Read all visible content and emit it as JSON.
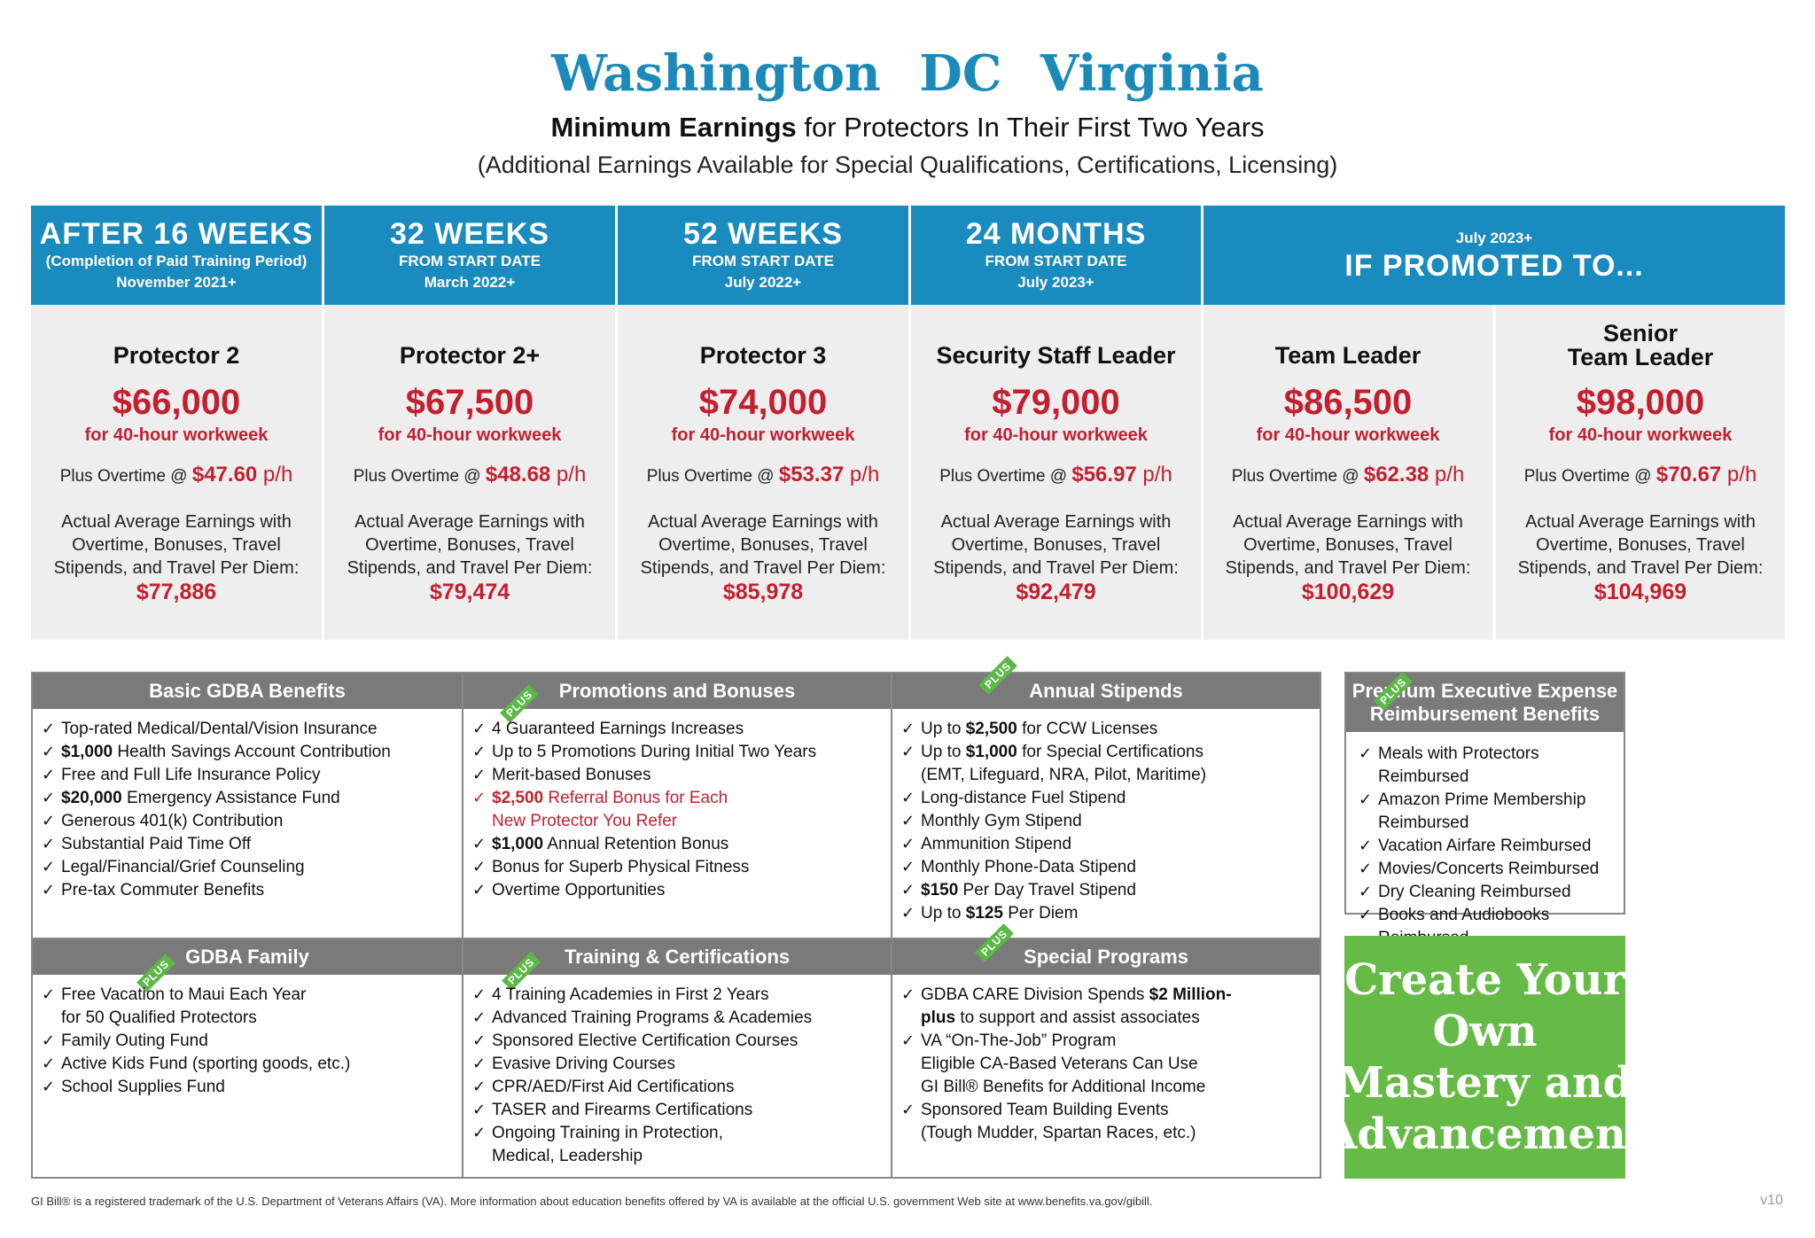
{
  "header": {
    "title": "Washington DC   Virginia",
    "subtitle_bold": "Minimum Earnings",
    "subtitle_rest": " for Protectors In Their First Two Years",
    "subtitle2": "(Additional Earnings Available for Special Qualifications, Certifications, Licensing)"
  },
  "pay_headers": [
    {
      "big": "AFTER 16 WEEKS",
      "line1": "(Completion of Paid Training Period)",
      "line2": "November 2021+"
    },
    {
      "big": "32 WEEKS",
      "line1": "FROM START DATE",
      "line2": "March 2022+"
    },
    {
      "big": "52 WEEKS",
      "line1": "FROM START DATE",
      "line2": "July 2022+"
    },
    {
      "big": "24 MONTHS",
      "line1": "FROM START DATE",
      "line2": "July 2023+"
    },
    {
      "small_top": "July 2023+",
      "big": "IF PROMOTED TO..."
    }
  ],
  "positions": [
    {
      "role": "Protector 2",
      "salary": "$66,000",
      "week": "for 40-hour workweek",
      "ot_label": "Plus Overtime @ ",
      "ot_rate": "$47.60",
      "ot_unit": " p/h",
      "avg_text": "Actual Average Earnings with Overtime, Bonuses, Travel Stipends, and Travel Per Diem:",
      "avg": "$77,886"
    },
    {
      "role": "Protector 2+",
      "salary": "$67,500",
      "week": "for 40-hour workweek",
      "ot_label": "Plus Overtime @ ",
      "ot_rate": "$48.68",
      "ot_unit": " p/h",
      "avg_text": "Actual Average Earnings with Overtime, Bonuses, Travel Stipends, and Travel Per Diem:",
      "avg": "$79,474"
    },
    {
      "role": "Protector 3",
      "salary": "$74,000",
      "week": "for 40-hour workweek",
      "ot_label": "Plus Overtime @ ",
      "ot_rate": "$53.37",
      "ot_unit": " p/h",
      "avg_text": "Actual Average Earnings with Overtime, Bonuses, Travel Stipends, and Travel Per Diem:",
      "avg": "$85,978"
    },
    {
      "role": "Security Staff Leader",
      "salary": "$79,000",
      "week": "for 40-hour workweek",
      "ot_label": "Plus Overtime @ ",
      "ot_rate": "$56.97",
      "ot_unit": " p/h",
      "avg_text": "Actual Average Earnings with Overtime, Bonuses, Travel Stipends, and Travel Per Diem:",
      "avg": "$92,479"
    },
    {
      "role": "Team Leader",
      "salary": "$86,500",
      "week": "for 40-hour workweek",
      "ot_label": "Plus Overtime @ ",
      "ot_rate": "$62.38",
      "ot_unit": " p/h",
      "avg_text": "Actual Average Earnings with Overtime, Bonuses, Travel Stipends, and Travel Per Diem:",
      "avg": "$100,629"
    },
    {
      "role_line1": "Senior",
      "role_line2": "Team Leader",
      "salary": "$98,000",
      "week": "for 40-hour workweek",
      "ot_label": "Plus Overtime @ ",
      "ot_rate": "$70.67",
      "ot_unit": " p/h",
      "avg_text": "Actual Average Earnings with Overtime, Bonuses, Travel Stipends, and Travel Per Diem:",
      "avg": "$104,969"
    }
  ],
  "plus_badge": "PLUS",
  "benefits": {
    "basic": {
      "title": "Basic GDBA Benefits",
      "items": [
        {
          "text": "Top-rated Medical/Dental/Vision Insurance"
        },
        {
          "bold": "$1,000",
          "text": " Health Savings Account Contribution"
        },
        {
          "text": "Free and Full Life Insurance Policy"
        },
        {
          "bold": "$20,000",
          "text": " Emergency Assistance Fund"
        },
        {
          "text": "Generous 401(k) Contribution"
        },
        {
          "text": "Substantial Paid Time Off"
        },
        {
          "text": "Legal/Financial/Grief Counseling"
        },
        {
          "text": "Pre-tax Commuter Benefits"
        }
      ]
    },
    "promotions": {
      "title": "Promotions and Bonuses",
      "items": [
        {
          "text": "4 Guaranteed Earnings Increases"
        },
        {
          "text": "Up to 5 Promotions During Initial Two Years"
        },
        {
          "text": "Merit-based Bonuses"
        },
        {
          "red_bold": "$2,500",
          "red_text": " Referral Bonus for Each",
          "red_line2": "New Protector You Refer"
        },
        {
          "bold": "$1,000",
          "text": " Annual Retention Bonus"
        },
        {
          "text": "Bonus for Superb Physical Fitness"
        },
        {
          "text": "Overtime Opportunities"
        }
      ]
    },
    "stipends": {
      "title": "Annual Stipends",
      "items": [
        {
          "pre": "Up to ",
          "bold": "$2,500",
          "text": " for CCW Licenses"
        },
        {
          "pre": "Up to ",
          "bold": "$1,000",
          "text": " for Special Certifications",
          "line2": "(EMT, Lifeguard, NRA, Pilot, Maritime)"
        },
        {
          "text": "Long-distance Fuel Stipend"
        },
        {
          "text": "Monthly Gym Stipend"
        },
        {
          "text": "Ammunition Stipend"
        },
        {
          "text": "Monthly Phone-Data Stipend"
        },
        {
          "bold": "$150",
          "text": " Per Day Travel Stipend"
        },
        {
          "pre": "Up to ",
          "bold": "$125",
          "text": " Per Diem"
        }
      ]
    },
    "family": {
      "title": "GDBA Family",
      "items": [
        {
          "text": "Free Vacation to Maui Each Year",
          "line2": "for 50 Qualified Protectors"
        },
        {
          "text": "Family Outing Fund"
        },
        {
          "text": "Active Kids Fund (sporting goods, etc.)"
        },
        {
          "text": "School Supplies Fund"
        }
      ]
    },
    "training": {
      "title": "Training & Certifications",
      "items": [
        {
          "text": "4 Training Academies in First 2 Years"
        },
        {
          "text": "Advanced Training Programs & Academies"
        },
        {
          "text": "Sponsored Elective Certification Courses"
        },
        {
          "text": "Evasive Driving Courses"
        },
        {
          "text": "CPR/AED/First Aid Certifications"
        },
        {
          "text": "TASER and Firearms Certifications"
        },
        {
          "text": "Ongoing Training in Protection,",
          "line2": "Medical, Leadership"
        }
      ]
    },
    "special": {
      "title": "Special Programs",
      "items": [
        {
          "pre": "GDBA CARE Division Spends ",
          "bold": "$2 Million-",
          "line2_bold": "plus",
          "line2": " to support and assist associates"
        },
        {
          "text": "VA “On-The-Job” Program",
          "line2": "Eligible CA-Based Veterans Can Use",
          "line3": "GI Bill® Benefits for Additional Income"
        },
        {
          "text": "Sponsored Team Building Events",
          "line2": "(Tough Mudder, Spartan Races, etc.)"
        }
      ]
    },
    "executive": {
      "title_line1": "Premium Executive Expense",
      "title_line2": "Reimbursement Benefits",
      "items": [
        "Meals with Protectors Reimbursed",
        "Amazon Prime Membership Reimbursed",
        "Vacation Airfare Reimbursed",
        "Movies/Concerts Reimbursed",
        "Dry Cleaning Reimbursed",
        "Books and Audiobooks Reimbursed"
      ]
    }
  },
  "cta": {
    "line1": "Create Your Own",
    "line2": "Mastery and",
    "line3": "Advancement"
  },
  "footer": "GI Bill® is a registered trademark of the U.S. Department of Veterans Affairs (VA). More information about education benefits offered by VA is available at the official U.S. government Web site at www.benefits.va.gov/gibill.",
  "version": "v10",
  "colors": {
    "brand_blue": "#1a8bbe",
    "accent_red": "#c41f2e",
    "header_gray": "#7a7a7a",
    "cta_green": "#66bb46"
  }
}
